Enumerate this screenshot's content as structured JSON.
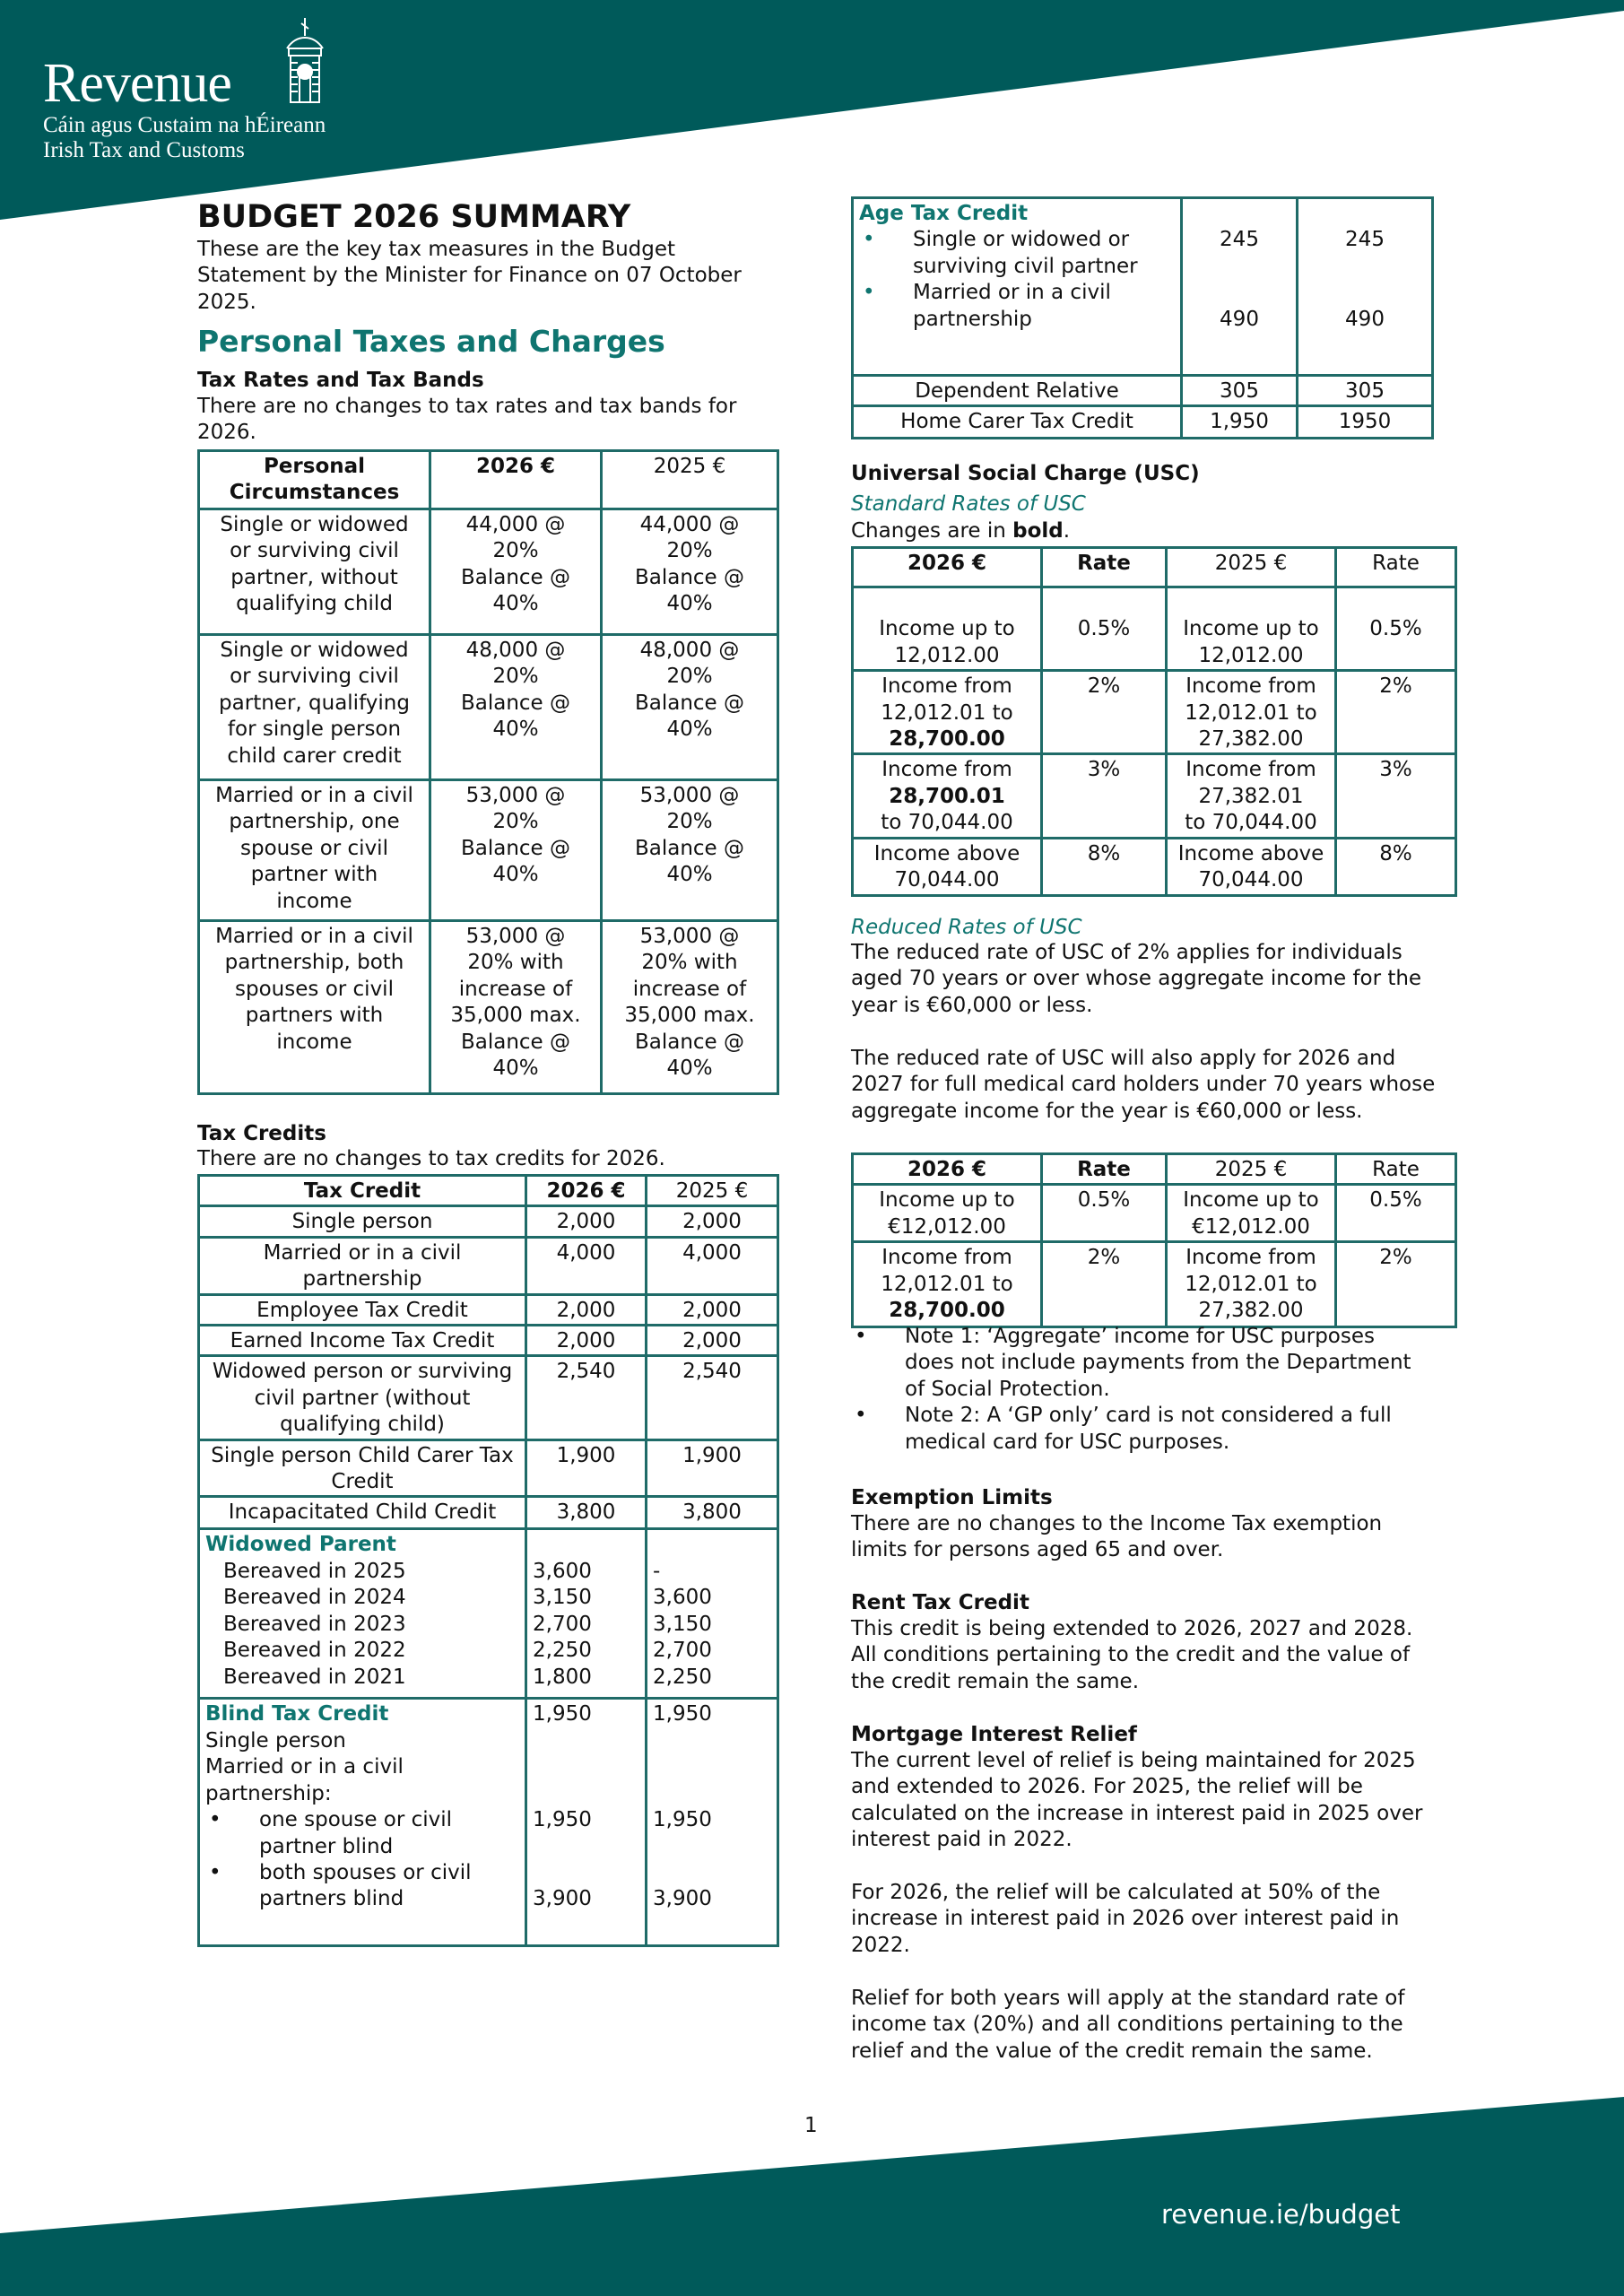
{
  "brand": {
    "name": "Revenue",
    "tagline_irish": "Cáin agus Custaim na hÉireann",
    "tagline_english": "Irish Tax and Customs",
    "color_primary": "#005a5a",
    "color_heading": "#0f7570"
  },
  "title": "BUDGET 2026 SUMMARY",
  "intro": "These are the key tax measures in the Budget Statement by the Minister for Finance on 07 October 2025.",
  "section_heading": "Personal Taxes and Charges",
  "tax_rates": {
    "heading": "Tax Rates and Tax Bands",
    "text": "There are no changes to tax rates and tax bands for 2026.",
    "table": {
      "rows": [
        {
          "cells": [
            {
              "t": "Personal\nCircumstances",
              "b": true
            },
            {
              "t": "2026 €",
              "b": true
            },
            {
              "t": "2025 €"
            }
          ]
        },
        {
          "cells": [
            {
              "t": "Single or widowed\nor surviving civil\npartner, without\nqualifying child"
            },
            {
              "t": "44,000 @\n20%\nBalance @\n40%"
            },
            {
              "t": "44,000 @\n20%\nBalance @\n40%"
            }
          ]
        },
        {
          "cells": [
            {
              "t": "Single or widowed\nor surviving civil\npartner, qualifying\nfor single person\nchild carer credit"
            },
            {
              "t": "48,000 @\n20%\nBalance @\n40%"
            },
            {
              "t": "48,000 @\n20%\nBalance @\n40%"
            }
          ]
        },
        {
          "cells": [
            {
              "t": "Married or in a civil\npartnership, one\nspouse or civil\npartner with\nincome"
            },
            {
              "t": "53,000 @\n20%\nBalance @\n40%"
            },
            {
              "t": "53,000 @\n20%\nBalance @\n40%"
            }
          ]
        },
        {
          "cells": [
            {
              "t": "Married or in a civil\npartnership, both\nspouses or civil\npartners with\nincome"
            },
            {
              "t": "53,000 @\n20% with\nincrease of\n35,000 max.\nBalance @\n40%"
            },
            {
              "t": "53,000 @\n20% with\nincrease of\n35,000 max.\nBalance @\n40%"
            }
          ]
        }
      ]
    }
  },
  "tax_credits": {
    "heading": "Tax Credits",
    "text": "There are no changes to tax credits for 2026.",
    "table": {
      "rows": [
        {
          "cells": [
            {
              "t": "Tax Credit",
              "b": true
            },
            {
              "t": "2026 €",
              "b": true
            },
            {
              "t": "2025 €"
            }
          ]
        },
        {
          "cells": [
            {
              "t": "Single person"
            },
            {
              "t": "2,000"
            },
            {
              "t": "2,000"
            }
          ]
        },
        {
          "cells": [
            {
              "t": "Married or in a civil\npartnership"
            },
            {
              "t": "4,000"
            },
            {
              "t": "4,000"
            }
          ]
        },
        {
          "cells": [
            {
              "t": "Employee Tax Credit"
            },
            {
              "t": "2,000"
            },
            {
              "t": "2,000"
            }
          ]
        },
        {
          "cells": [
            {
              "t": "Earned Income Tax Credit"
            },
            {
              "t": "2,000"
            },
            {
              "t": "2,000"
            }
          ]
        },
        {
          "cells": [
            {
              "t": "Widowed person or surviving\ncivil partner (without\nqualifying child)"
            },
            {
              "t": "2,540"
            },
            {
              "t": "2,540"
            }
          ]
        },
        {
          "cells": [
            {
              "t": "Single person Child Carer Tax\nCredit"
            },
            {
              "t": "1,900"
            },
            {
              "t": "1,900"
            }
          ]
        },
        {
          "cells": [
            {
              "t": "Incapacitated Child Credit"
            },
            {
              "t": "3,800"
            },
            {
              "t": "3,800"
            }
          ]
        },
        {
          "cells": [
            {
              "heading": "Widowed Parent",
              "lines": [
                "Bereaved in 2025",
                "Bereaved in 2024",
                "Bereaved in 2023",
                "Bereaved in 2022",
                "Bereaved in 2021"
              ],
              "align": "left",
              "indent": true
            },
            {
              "t": "\n3,600\n3,150\n2,700\n2,250\n1,800",
              "align": "left"
            },
            {
              "t": "\n-\n3,600\n3,150\n2,700\n2,250",
              "align": "left"
            }
          ]
        },
        {
          "cells": [
            {
              "heading": "Blind Tax Credit",
              "lines": [
                "Single person",
                "Married or in a civil partnership:"
              ],
              "bullets": [
                "one spouse or civil partner blind",
                "both spouses or civil partners blind"
              ],
              "align": "left"
            },
            {
              "t": "1,950\n\n\n\n1,950\n\n\n3,900",
              "align": "left"
            },
            {
              "t": "1,950\n\n\n\n1,950\n\n\n3,900",
              "align": "left"
            }
          ]
        }
      ]
    }
  },
  "age_credit": {
    "table": {
      "rows": [
        {
          "cells": [
            {
              "heading": "Age Tax Credit",
              "bullets": [
                "Single or widowed or surviving civil partner",
                "Married or in a civil partnership"
              ],
              "align": "left"
            },
            {
              "t": "\n245\n\n\n490"
            },
            {
              "t": "\n245\n\n\n490"
            }
          ]
        },
        {
          "cells": [
            {
              "t": "Dependent Relative"
            },
            {
              "t": "305"
            },
            {
              "t": "305"
            }
          ]
        },
        {
          "cells": [
            {
              "t": "Home Carer Tax Credit"
            },
            {
              "t": "1,950"
            },
            {
              "t": "1950"
            }
          ]
        }
      ]
    }
  },
  "usc": {
    "heading": "Universal Social Charge (USC)",
    "standard_heading": "Standard Rates of USC",
    "changes_prefix": "Changes are in ",
    "changes_bold": "bold",
    "changes_suffix": ".",
    "standard_table": {
      "rows": [
        {
          "cells": [
            {
              "t": "2026 €",
              "b": true
            },
            {
              "t": "Rate",
              "b": true
            },
            {
              "t": "2025 €"
            },
            {
              "t": "Rate"
            }
          ]
        },
        {
          "cells": [
            {
              "t": "\nIncome up to\n12,012.00"
            },
            {
              "t": "\n0.5%"
            },
            {
              "t": "\nIncome up to\n12,012.00"
            },
            {
              "t": "\n0.5%"
            }
          ]
        },
        {
          "cells": [
            {
              "parts": [
                {
                  "t": "Income from\n12,012.01  to\n"
                },
                {
                  "t": "28,700.00",
                  "b": true
                }
              ]
            },
            {
              "t": "2%"
            },
            {
              "t": "Income from\n12,012.01  to\n27,382.00"
            },
            {
              "t": "2%"
            }
          ]
        },
        {
          "cells": [
            {
              "parts": [
                {
                  "t": "Income from\n"
                },
                {
                  "t": "28,700.01",
                  "b": true
                },
                {
                  "t": "\nto 70,044.00"
                }
              ]
            },
            {
              "t": "3%"
            },
            {
              "t": "Income from\n27,382.01\nto 70,044.00"
            },
            {
              "t": "3%"
            }
          ]
        },
        {
          "cells": [
            {
              "t": "Income above\n70,044.00"
            },
            {
              "t": "8%"
            },
            {
              "t": "Income above\n70,044.00"
            },
            {
              "t": "8%"
            }
          ]
        }
      ]
    },
    "reduced_heading": "Reduced Rates of USC",
    "reduced_text_1": "The reduced rate of USC of 2% applies for individuals aged 70 years or over whose aggregate income for the year is €60,000 or less.",
    "reduced_text_2": "The reduced rate of USC will also apply for 2026 and 2027 for full medical card holders under 70 years whose aggregate income for the year is €60,000 or less.",
    "reduced_table": {
      "rows": [
        {
          "cells": [
            {
              "t": "2026 €",
              "b": true
            },
            {
              "t": "Rate",
              "b": true
            },
            {
              "t": "2025 €"
            },
            {
              "t": "Rate"
            }
          ]
        },
        {
          "cells": [
            {
              "t": "Income up to\n€12,012.00"
            },
            {
              "t": "0.5%"
            },
            {
              "t": "Income up to\n€12,012.00"
            },
            {
              "t": "0.5%"
            }
          ]
        },
        {
          "cells": [
            {
              "parts": [
                {
                  "t": "Income from\n12,012.01 to\n"
                },
                {
                  "t": "28,700.00",
                  "b": true
                }
              ]
            },
            {
              "t": "2%"
            },
            {
              "t": "Income from\n12,012.01 to\n27,382.00"
            },
            {
              "t": "2%"
            }
          ]
        }
      ]
    },
    "notes": [
      "Note 1: ‘Aggregate’ income for USC purposes does not include payments from the Department of Social Protection.",
      "Note 2: A ‘GP only’ card is not considered a full medical card for USC purposes."
    ]
  },
  "exemption": {
    "heading": "Exemption Limits",
    "text": "There are no changes to the Income Tax exemption limits for persons aged 65 and over."
  },
  "rent": {
    "heading": "Rent Tax Credit",
    "text": "This credit is being extended to 2026, 2027 and 2028. All conditions pertaining to the credit and the value of the credit remain the same."
  },
  "mortgage": {
    "heading": "Mortgage Interest Relief",
    "text_1": "The current level of relief is being maintained for 2025 and extended to 2026. For 2025, the relief will be calculated on the increase in interest paid in 2025 over interest paid in 2022.",
    "text_2": "For 2026, the relief will be calculated at 50% of the increase in interest paid in 2026 over interest paid in 2022.",
    "text_3": "Relief for both years will apply at the standard rate of income tax (20%) and all conditions pertaining to the relief and the value of the credit remain the same."
  },
  "page_number": "1",
  "footer_link": "revenue.ie/budget"
}
